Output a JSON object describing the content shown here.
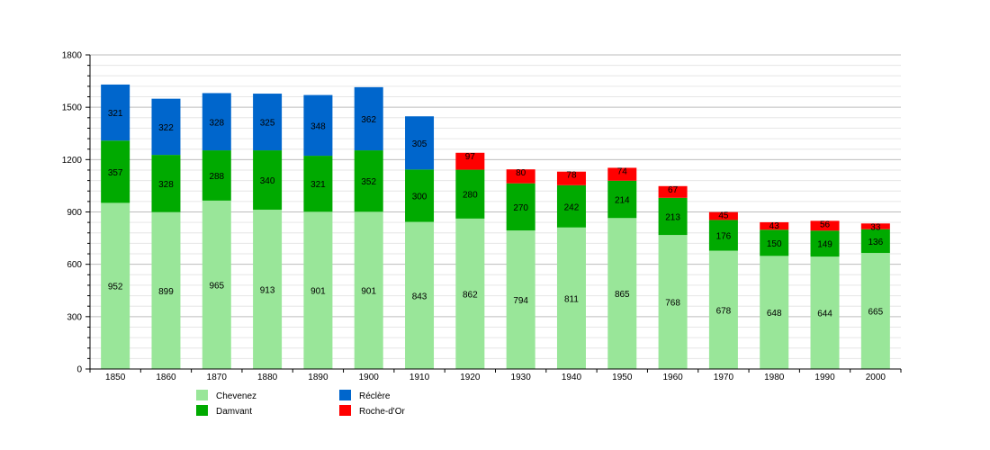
{
  "chart_data": {
    "type": "bar",
    "stacked": true,
    "categories": [
      "1850",
      "1860",
      "1870",
      "1880",
      "1890",
      "1900",
      "1910",
      "1920",
      "1930",
      "1940",
      "1950",
      "1960",
      "1970",
      "1980",
      "1990",
      "2000"
    ],
    "series": [
      {
        "name": "Chevenez",
        "color": "#99e699",
        "values": [
          952,
          899,
          965,
          913,
          901,
          901,
          843,
          862,
          794,
          811,
          865,
          768,
          678,
          648,
          644,
          665
        ]
      },
      {
        "name": "Damvant",
        "color": "#00aa00",
        "values": [
          357,
          328,
          288,
          340,
          321,
          352,
          300,
          280,
          270,
          242,
          214,
          213,
          176,
          150,
          149,
          136
        ]
      },
      {
        "name": "Réclère",
        "color": "#0066cc",
        "values": [
          321,
          322,
          328,
          325,
          348,
          362,
          305,
          null,
          null,
          null,
          null,
          null,
          null,
          null,
          null,
          null
        ]
      },
      {
        "name": "Roche-d'Or",
        "color": "#ff0000",
        "values": [
          null,
          null,
          null,
          null,
          null,
          null,
          null,
          97,
          80,
          78,
          74,
          67,
          45,
          43,
          56,
          33
        ]
      }
    ],
    "y_ticks": [
      "0",
      "300",
      "600",
      "900",
      "1200",
      "1500",
      "1800"
    ],
    "ylim": [
      0,
      1800
    ],
    "grid": true,
    "legend_position": "bottom-left",
    "title": "",
    "xlabel": "",
    "ylabel": ""
  }
}
